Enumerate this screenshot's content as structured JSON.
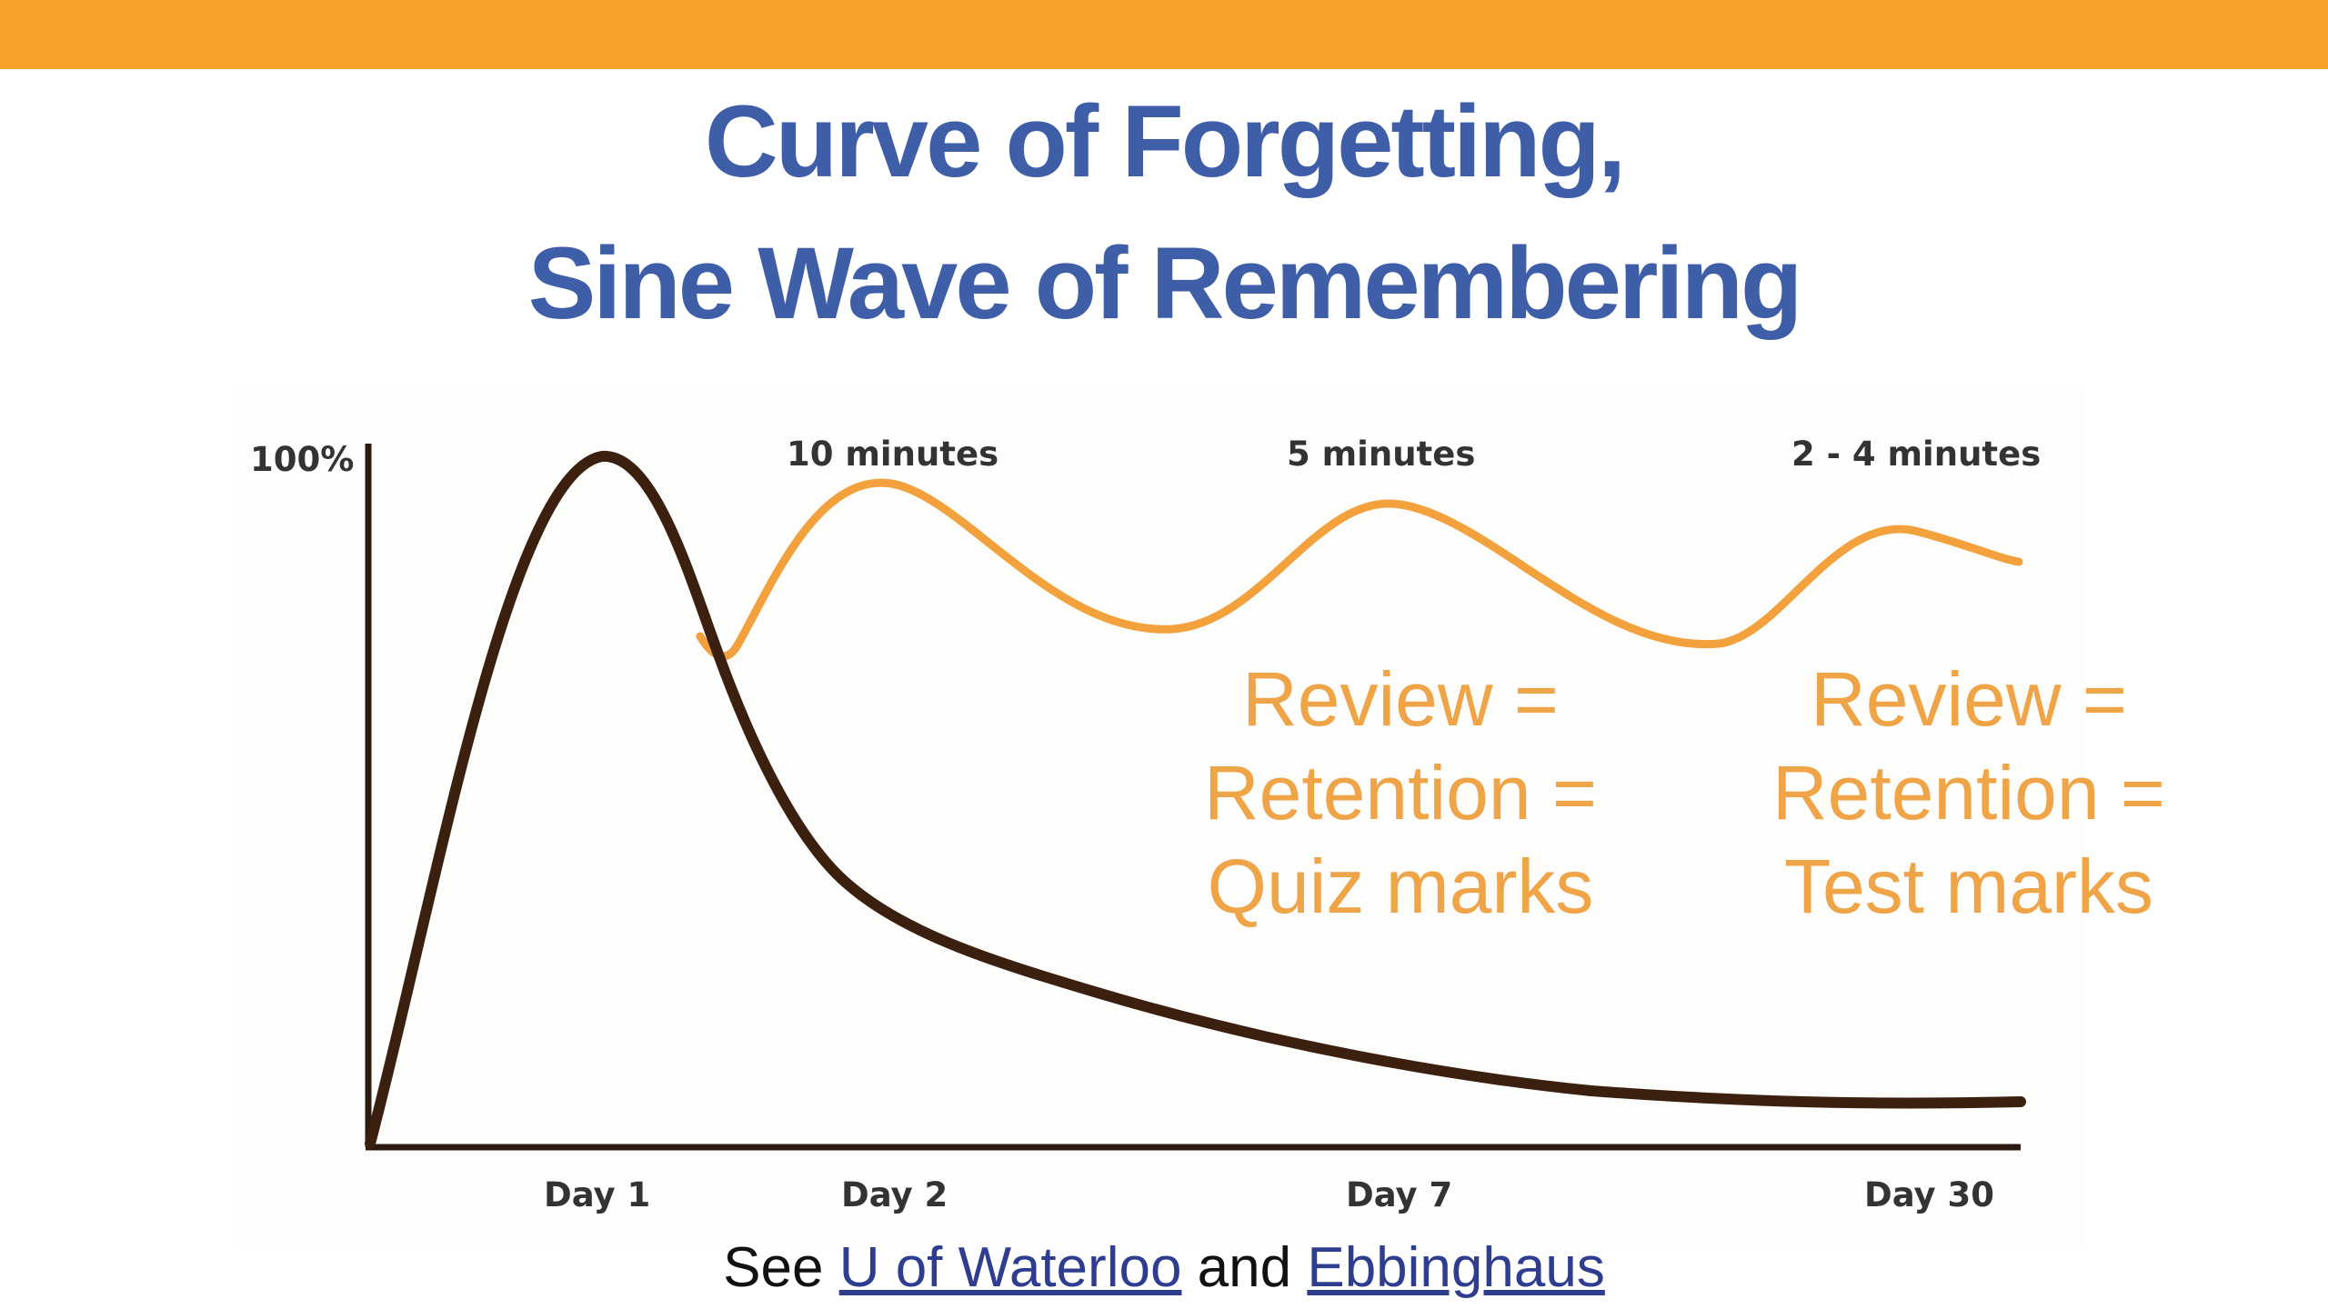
{
  "slide": {
    "title_line1": "Curve of Forgetting,",
    "title_line2": "Sine Wave of Remembering"
  },
  "colors": {
    "topbar": "#f8a12a",
    "title": "#3f5ea8",
    "forgetting_curve": "#3b2010",
    "review_curve": "#f2a13c",
    "annotation": "#f0a448",
    "link": "#2e3d8f",
    "axis": "#2b1a10"
  },
  "chart_data": {
    "type": "line",
    "title": "",
    "xlabel": "",
    "ylabel": "",
    "y_top_label": "100%",
    "x_tick_labels": [
      "Day 1",
      "Day 2",
      "Day 7",
      "Day 30"
    ],
    "review_labels": [
      "10 minutes",
      "5 minutes",
      "2 - 4 minutes"
    ],
    "series": [
      {
        "x": [
          0,
          0.5,
          1,
          1.3,
          1.7,
          2,
          3,
          4,
          5,
          6,
          7,
          10,
          14,
          20,
          25,
          30
        ],
        "y": [
          0,
          70,
          100,
          80,
          45,
          34,
          26,
          21,
          17,
          14,
          11,
          8,
          6,
          5,
          4.5,
          4
        ]
      },
      {
        "x": [
          1.4,
          2,
          2.5,
          4,
          5,
          7,
          8,
          9,
          10,
          11,
          12
        ],
        "y": [
          70,
          94,
          83,
          74,
          90,
          78,
          72,
          87,
          84,
          76,
          86
        ]
      }
    ]
  },
  "annotations": {
    "left": {
      "line1": "Review =",
      "line2": "Retention =",
      "line3": "Quiz marks"
    },
    "right": {
      "line1": "Review =",
      "line2": "Retention =",
      "line3": "Test  marks"
    }
  },
  "footer": {
    "prefix": "See ",
    "link1": "U of Waterloo",
    "middle": " and ",
    "link2": "Ebbinghaus"
  }
}
